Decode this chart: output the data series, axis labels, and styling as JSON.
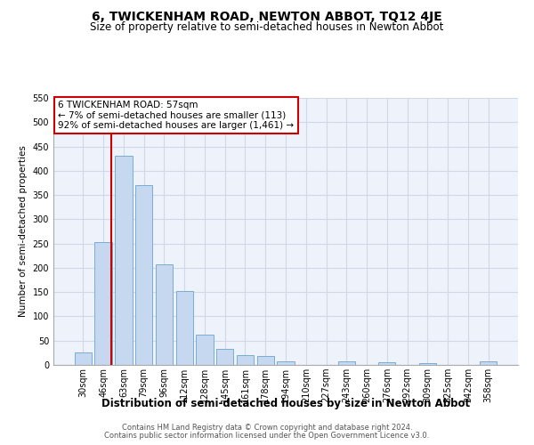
{
  "title": "6, TWICKENHAM ROAD, NEWTON ABBOT, TQ12 4JE",
  "subtitle": "Size of property relative to semi-detached houses in Newton Abbot",
  "xlabel": "Distribution of semi-detached houses by size in Newton Abbot",
  "ylabel": "Number of semi-detached properties",
  "footer1": "Contains HM Land Registry data © Crown copyright and database right 2024.",
  "footer2": "Contains public sector information licensed under the Open Government Licence v3.0.",
  "annotation_line1": "6 TWICKENHAM ROAD: 57sqm",
  "annotation_line2": "← 7% of semi-detached houses are smaller (113)",
  "annotation_line3": "92% of semi-detached houses are larger (1,461) →",
  "bar_color": "#c5d8f0",
  "bar_edge_color": "#7aadd4",
  "red_line_color": "#cc0000",
  "grid_color": "#d0d8e8",
  "background_color": "#eef2fa",
  "categories": [
    "30sqm",
    "46sqm",
    "63sqm",
    "79sqm",
    "96sqm",
    "112sqm",
    "128sqm",
    "145sqm",
    "161sqm",
    "178sqm",
    "194sqm",
    "210sqm",
    "227sqm",
    "243sqm",
    "260sqm",
    "276sqm",
    "292sqm",
    "309sqm",
    "325sqm",
    "342sqm",
    "358sqm"
  ],
  "values": [
    25,
    253,
    430,
    370,
    208,
    152,
    62,
    33,
    20,
    18,
    8,
    0,
    0,
    8,
    0,
    5,
    0,
    3,
    0,
    0,
    7
  ],
  "ylim": [
    0,
    550
  ],
  "yticks": [
    0,
    50,
    100,
    150,
    200,
    250,
    300,
    350,
    400,
    450,
    500,
    550
  ],
  "red_line_x": 1.4,
  "title_fontsize": 10,
  "subtitle_fontsize": 8.5,
  "ylabel_fontsize": 7.5,
  "xlabel_fontsize": 8.5,
  "tick_fontsize": 7,
  "annotation_fontsize": 7.5,
  "footer_fontsize": 6
}
